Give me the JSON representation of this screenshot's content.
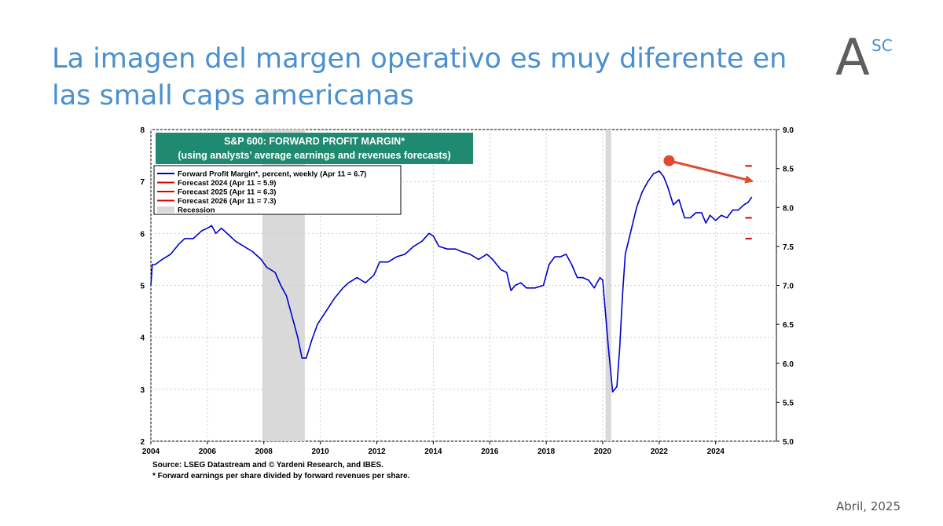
{
  "slide": {
    "title": "La imagen del margen operativo es muy diferente en las small caps americanas",
    "logo": {
      "letter": "A",
      "superscript": "SC"
    },
    "date": "Abril, 2025"
  },
  "colors": {
    "title": "#4a90cf",
    "series": "#0000cc",
    "forecast": "#dd0000",
    "recession": "#d9d9d9",
    "title_box": "#1f8a70",
    "arrow": "#e04a2f"
  },
  "chart_data": {
    "type": "line",
    "title": "S&P 600: FORWARD PROFIT MARGIN*",
    "subtitle": "(using analysts’ average earnings and revenues forecasts)",
    "source": "Source: LSEG Datastream and © Yardeni Research, and IBES.",
    "footnote": "* Forward earnings per share divided by forward revenues per share.",
    "xlim": [
      2004,
      2026.15
    ],
    "ylim_left": [
      2,
      8
    ],
    "ylim_right": [
      5.0,
      9.0
    ],
    "x_ticks": [
      "2004",
      "2006",
      "2008",
      "2010",
      "2012",
      "2014",
      "2016",
      "2018",
      "2020",
      "2022",
      "2024"
    ],
    "y_ticks_left": [
      "2",
      "3",
      "4",
      "5",
      "6",
      "7",
      "8"
    ],
    "y_ticks_right": [
      "5.0",
      "5.5",
      "6.0",
      "6.5",
      "7.0",
      "7.5",
      "8.0",
      "8.5",
      "9.0"
    ],
    "grid": true,
    "legend_position": "top-left",
    "legend": [
      {
        "label": "Forward Profit Margin*, percent, weekly (Apr 11 = 6.7)",
        "kind": "line",
        "color": "#0000cc"
      },
      {
        "label": "Forecast 2024 (Apr 11 = 5.9)",
        "kind": "line",
        "color": "#dd0000"
      },
      {
        "label": "Forecast 2025 (Apr 11 = 6.3)",
        "kind": "line",
        "color": "#dd0000"
      },
      {
        "label": "Forecast 2026 (Apr 11 = 7.3)",
        "kind": "line",
        "color": "#dd0000"
      },
      {
        "label": "Recession",
        "kind": "box",
        "color": "#d9d9d9"
      }
    ],
    "recessions": [
      [
        2007.95,
        2009.45
      ],
      [
        2020.1,
        2020.3
      ]
    ],
    "series": [
      {
        "name": "Forward Profit Margin*, percent, weekly (Apr 11 = 6.7)",
        "x": [
          2004.0,
          2004.05,
          2004.15,
          2004.4,
          2004.7,
          2005.0,
          2005.2,
          2005.5,
          2005.8,
          2006.0,
          2006.15,
          2006.3,
          2006.5,
          2006.8,
          2007.0,
          2007.3,
          2007.6,
          2007.9,
          2008.1,
          2008.4,
          2008.6,
          2008.8,
          2009.0,
          2009.2,
          2009.35,
          2009.5,
          2009.7,
          2009.9,
          2010.2,
          2010.5,
          2010.8,
          2011.0,
          2011.3,
          2011.6,
          2011.9,
          2012.1,
          2012.4,
          2012.7,
          2013.0,
          2013.3,
          2013.6,
          2013.85,
          2014.0,
          2014.2,
          2014.5,
          2014.8,
          2015.0,
          2015.3,
          2015.6,
          2015.9,
          2016.1,
          2016.4,
          2016.6,
          2016.75,
          2016.9,
          2017.1,
          2017.3,
          2017.6,
          2017.9,
          2018.1,
          2018.3,
          2018.5,
          2018.7,
          2018.9,
          2019.1,
          2019.3,
          2019.5,
          2019.7,
          2019.9,
          2020.0,
          2020.2,
          2020.35,
          2020.5,
          2020.6,
          2020.7,
          2020.8,
          2021.0,
          2021.2,
          2021.4,
          2021.6,
          2021.8,
          2022.0,
          2022.15,
          2022.3,
          2022.5,
          2022.7,
          2022.9,
          2023.1,
          2023.3,
          2023.5,
          2023.65,
          2023.8,
          2024.0,
          2024.1,
          2024.2,
          2024.4,
          2024.6,
          2024.8,
          2025.0,
          2025.15,
          2025.28
        ],
        "values": [
          5.0,
          5.4,
          5.4,
          5.5,
          5.6,
          5.8,
          5.9,
          5.9,
          6.05,
          6.1,
          6.15,
          6.0,
          6.1,
          5.95,
          5.85,
          5.75,
          5.65,
          5.5,
          5.35,
          5.25,
          5.0,
          4.8,
          4.4,
          4.0,
          3.6,
          3.6,
          3.95,
          4.25,
          4.5,
          4.75,
          4.95,
          5.05,
          5.15,
          5.05,
          5.2,
          5.45,
          5.45,
          5.55,
          5.6,
          5.75,
          5.85,
          6.0,
          5.95,
          5.75,
          5.7,
          5.7,
          5.65,
          5.6,
          5.5,
          5.6,
          5.5,
          5.3,
          5.25,
          4.9,
          5.0,
          5.05,
          4.95,
          4.95,
          5.0,
          5.4,
          5.55,
          5.55,
          5.6,
          5.4,
          5.15,
          5.15,
          5.1,
          4.95,
          5.15,
          5.1,
          3.8,
          2.95,
          3.05,
          3.8,
          4.8,
          5.6,
          6.05,
          6.5,
          6.8,
          7.0,
          7.15,
          7.2,
          7.1,
          6.9,
          6.55,
          6.65,
          6.3,
          6.3,
          6.4,
          6.4,
          6.2,
          6.35,
          6.25,
          6.3,
          6.35,
          6.3,
          6.45,
          6.45,
          6.55,
          6.6,
          6.7
        ]
      },
      {
        "name": "Forecast 2024",
        "x": [
          2025.05,
          2025.28
        ],
        "values": [
          5.9,
          5.9
        ]
      },
      {
        "name": "Forecast 2025",
        "x": [
          2025.05,
          2025.28
        ],
        "values": [
          6.3,
          6.3
        ]
      },
      {
        "name": "Forecast 2026",
        "x": [
          2025.05,
          2025.28
        ],
        "values": [
          7.3,
          7.3
        ]
      }
    ],
    "annotation_arrow": {
      "from": [
        2022.35,
        7.4
      ],
      "to": [
        2025.35,
        7.0
      ]
    }
  }
}
